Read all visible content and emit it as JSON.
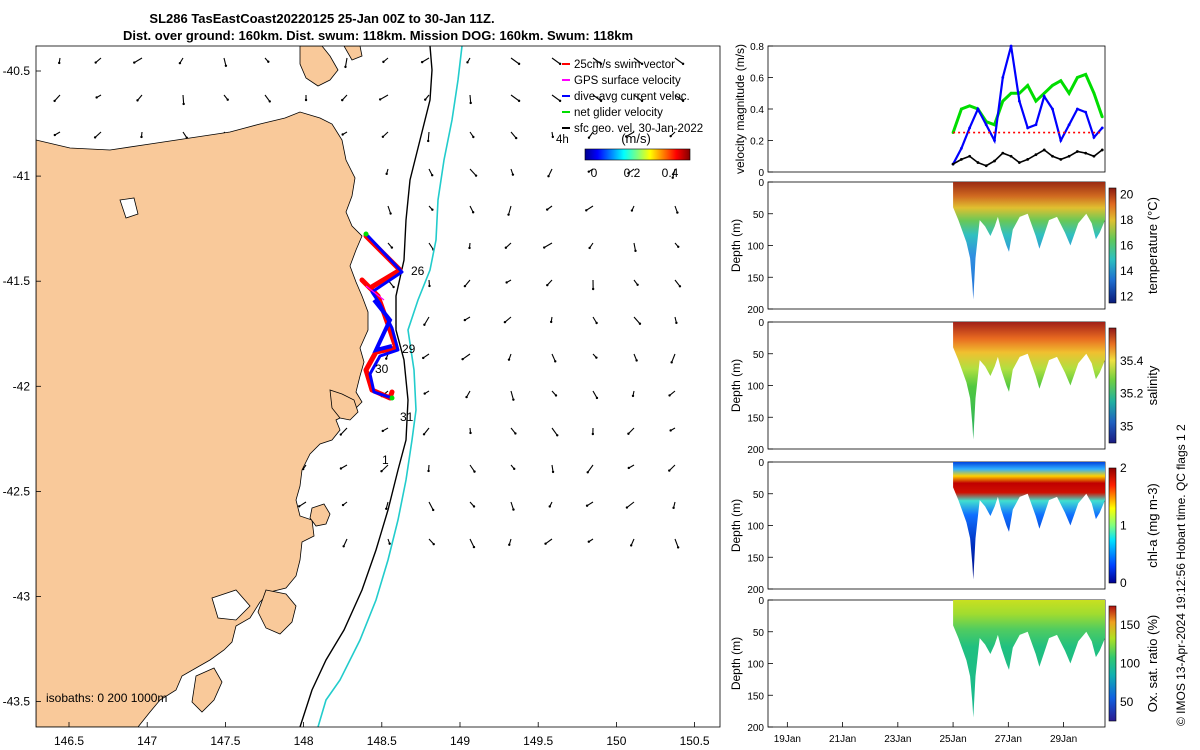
{
  "header": {
    "title_line1": "SL286 TasEastCoast20220125 25-Jan 00Z to 30-Jan 11Z.",
    "title_line2": "Dist. over ground: 160km. Dist. swum: 118km. Mission DOG: 160km. Swum: 118km"
  },
  "copyright": "© IMOS 13-Apr-2024 19:12:56 Hobart time. QC flags 1  2",
  "map": {
    "lon_ticks": [
      "146.5",
      "147",
      "147.5",
      "148",
      "148.5",
      "149",
      "149.5",
      "150",
      "150.5"
    ],
    "lat_ticks": [
      "-40.5",
      "-41",
      "-41.5",
      "-42",
      "-42.5",
      "-43",
      "-43.5"
    ],
    "legend": {
      "items": [
        "25cm/s swim vector",
        "GPS surface velocity",
        "dive-avg current veloc.",
        "net glider velocity",
        "sfc geo. vel. 30-Jan-2022"
      ],
      "colors": [
        "#ff0000",
        "#ff00ff",
        "#0000ff",
        "#00dd00",
        "#000000"
      ],
      "scale_label": "4h",
      "cbar_title": "(m/s)",
      "cbar_ticks": [
        "0",
        "0.2",
        "0.4"
      ]
    },
    "day_labels": [
      "26",
      "29",
      "30",
      "31",
      "1"
    ],
    "isobath_label": "isobaths: 0   200  1000m",
    "land_color": "#f9c99a",
    "shelf_color": "#22cccc"
  },
  "time_axis": {
    "ticks": [
      "19Jan",
      "21Jan",
      "23Jan",
      "25Jan",
      "27Jan",
      "29Jan"
    ]
  },
  "chart_data": [
    {
      "type": "line",
      "title": "velocity magnitude",
      "xlabel": "",
      "ylabel": "velocity magnitude (m/s)",
      "ylim": [
        0,
        0.8
      ],
      "yticks": [
        "0",
        "0.2",
        "0.4",
        "0.6",
        "0.8"
      ],
      "x_days": [
        25.0,
        25.3,
        25.6,
        25.9,
        26.2,
        26.5,
        26.8,
        27.1,
        27.4,
        27.7,
        28.0,
        28.3,
        28.6,
        28.9,
        29.2,
        29.5,
        29.8,
        30.1,
        30.4
      ],
      "series": [
        {
          "name": "net glider velocity",
          "color": "#00dd00",
          "values": [
            0.25,
            0.4,
            0.42,
            0.4,
            0.32,
            0.3,
            0.45,
            0.5,
            0.5,
            0.55,
            0.45,
            0.5,
            0.55,
            0.58,
            0.5,
            0.6,
            0.62,
            0.5,
            0.35
          ]
        },
        {
          "name": "dive-avg current veloc.",
          "color": "#0000ff",
          "values": [
            0.05,
            0.15,
            0.28,
            0.4,
            0.3,
            0.2,
            0.6,
            0.8,
            0.45,
            0.28,
            0.3,
            0.48,
            0.4,
            0.2,
            0.3,
            0.4,
            0.38,
            0.22,
            0.28
          ]
        },
        {
          "name": "sfc geo. vel.",
          "color": "#000000",
          "values": [
            0.05,
            0.08,
            0.1,
            0.06,
            0.04,
            0.07,
            0.12,
            0.1,
            0.06,
            0.08,
            0.11,
            0.14,
            0.1,
            0.08,
            0.1,
            0.13,
            0.12,
            0.1,
            0.14
          ]
        },
        {
          "name": "25cm/s swim vector",
          "color": "#ff0000",
          "values": [
            0.25,
            0.25,
            0.25,
            0.25,
            0.25,
            0.25,
            0.25,
            0.25,
            0.25,
            0.25,
            0.25,
            0.25,
            0.25,
            0.25,
            0.25,
            0.25,
            0.25,
            0.25,
            0.25
          ]
        }
      ]
    },
    {
      "type": "heatmap",
      "variable": "temperature",
      "ylabel": "Depth (m)",
      "clabel": "temperature (°C)",
      "ylim": [
        200,
        0
      ],
      "yticks": [
        "0",
        "50",
        "100",
        "150",
        "200"
      ],
      "crange": [
        11.5,
        20.5
      ],
      "cticks": [
        "12",
        "14",
        "16",
        "18",
        "20"
      ],
      "surface_value": 20,
      "deep_value": 13
    },
    {
      "type": "heatmap",
      "variable": "salinity",
      "ylabel": "Depth (m)",
      "clabel": "salinity",
      "ylim": [
        200,
        0
      ],
      "yticks": [
        "0",
        "50",
        "100",
        "150",
        "200"
      ],
      "crange": [
        34.9,
        35.6
      ],
      "cticks": [
        "35",
        "35.2",
        "35.4"
      ],
      "surface_value": 35.55,
      "deep_value": 35.1
    },
    {
      "type": "heatmap",
      "variable": "chlorophyll",
      "ylabel": "Depth (m)",
      "clabel": "chl-a (mg m-3)",
      "ylim": [
        200,
        0
      ],
      "yticks": [
        "0",
        "50",
        "100",
        "150",
        "200"
      ],
      "crange": [
        0,
        2
      ],
      "cticks": [
        "0",
        "1",
        "2"
      ],
      "surface_value": 0.5,
      "deep_value": 0.2
    },
    {
      "type": "heatmap",
      "variable": "oxygen",
      "ylabel": "Depth (m)",
      "clabel": "Ox. sat. ratio (%)",
      "ylim": [
        200,
        0
      ],
      "yticks": [
        "0",
        "50",
        "100",
        "150",
        "200"
      ],
      "crange": [
        25,
        175
      ],
      "cticks": [
        "50",
        "100",
        "150"
      ],
      "surface_value": 150,
      "deep_value": 95
    }
  ]
}
